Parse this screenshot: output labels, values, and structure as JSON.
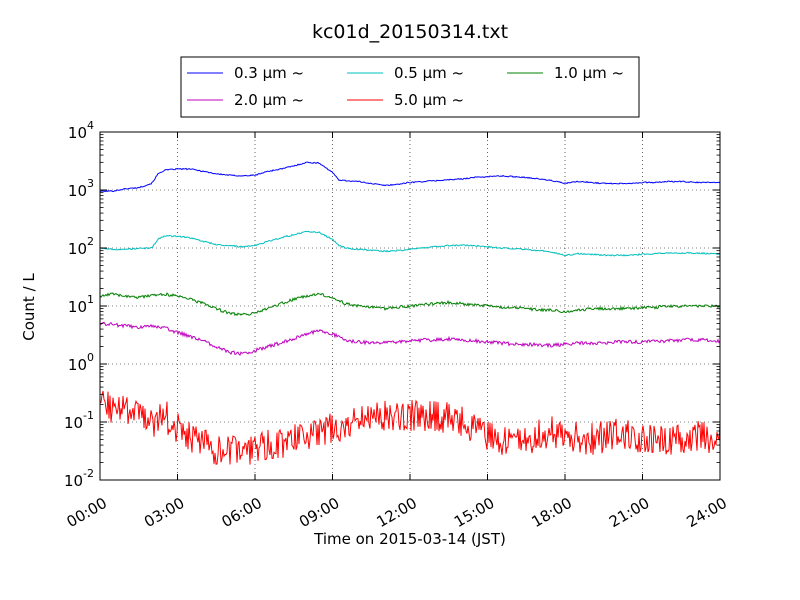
{
  "chart_data": {
    "type": "line",
    "title": "kc01d_20150314.txt",
    "xlabel": "Time on 2015-03-14 (JST)",
    "ylabel": "Count / L",
    "x_ticks": [
      "00:00",
      "03:00",
      "06:00",
      "09:00",
      "12:00",
      "15:00",
      "18:00",
      "21:00",
      "24:00"
    ],
    "y_ticks": [
      {
        "base": "10",
        "exp": "-2"
      },
      {
        "base": "10",
        "exp": "-1"
      },
      {
        "base": "10",
        "exp": "0"
      },
      {
        "base": "10",
        "exp": "1"
      },
      {
        "base": "10",
        "exp": "2"
      },
      {
        "base": "10",
        "exp": "3"
      },
      {
        "base": "10",
        "exp": "4"
      }
    ],
    "xlim": [
      "00:00",
      "24:00"
    ],
    "ylim": [
      0.01,
      10000
    ],
    "y_scale": "log",
    "grid": true,
    "legend_position": "above-plot",
    "series": [
      {
        "name": "0.3 μm ~",
        "color": "#0000ff",
        "x": [
          "00:00",
          "00:30",
          "01:00",
          "01:30",
          "02:00",
          "02:15",
          "02:30",
          "03:00",
          "03:30",
          "04:00",
          "04:30",
          "05:00",
          "05:30",
          "06:00",
          "06:30",
          "07:00",
          "07:30",
          "08:00",
          "08:30",
          "09:00",
          "09:15",
          "09:30",
          "10:00",
          "10:30",
          "11:00",
          "11:30",
          "12:00",
          "12:30",
          "13:00",
          "13:30",
          "14:00",
          "14:30",
          "15:00",
          "15:30",
          "16:00",
          "16:30",
          "17:00",
          "17:30",
          "18:00",
          "18:30",
          "19:00",
          "19:30",
          "20:00",
          "20:30",
          "21:00",
          "21:30",
          "22:00",
          "22:30",
          "23:00",
          "23:30",
          "24:00"
        ],
        "y": [
          950,
          960,
          1050,
          1100,
          1300,
          1900,
          2200,
          2300,
          2300,
          2100,
          1900,
          1800,
          1750,
          1800,
          2100,
          2300,
          2600,
          3000,
          2900,
          2000,
          1500,
          1450,
          1400,
          1300,
          1200,
          1250,
          1350,
          1400,
          1450,
          1500,
          1550,
          1650,
          1700,
          1750,
          1700,
          1650,
          1550,
          1450,
          1300,
          1400,
          1350,
          1300,
          1300,
          1300,
          1350,
          1350,
          1400,
          1400,
          1350,
          1350,
          1350
        ]
      },
      {
        "name": "0.5 μm ~",
        "color": "#00bfbf",
        "x": [
          "00:00",
          "00:30",
          "01:00",
          "01:30",
          "02:00",
          "02:15",
          "02:30",
          "03:00",
          "03:30",
          "04:00",
          "04:30",
          "05:00",
          "05:30",
          "06:00",
          "06:30",
          "07:00",
          "07:30",
          "08:00",
          "08:30",
          "09:00",
          "09:15",
          "09:30",
          "10:00",
          "10:30",
          "11:00",
          "11:30",
          "12:00",
          "12:30",
          "13:00",
          "13:30",
          "14:00",
          "14:30",
          "15:00",
          "15:30",
          "16:00",
          "16:30",
          "17:00",
          "17:30",
          "18:00",
          "18:30",
          "19:00",
          "19:30",
          "20:00",
          "20:30",
          "21:00",
          "21:30",
          "22:00",
          "22:30",
          "23:00",
          "23:30",
          "24:00"
        ],
        "y": [
          100,
          95,
          95,
          98,
          100,
          145,
          160,
          160,
          150,
          130,
          115,
          110,
          105,
          110,
          130,
          150,
          170,
          190,
          185,
          140,
          110,
          100,
          95,
          92,
          88,
          90,
          95,
          100,
          105,
          110,
          112,
          110,
          105,
          100,
          98,
          95,
          90,
          85,
          75,
          80,
          78,
          75,
          75,
          75,
          78,
          80,
          82,
          82,
          82,
          80,
          80
        ]
      },
      {
        "name": "1.0 μm ~",
        "color": "#008000",
        "x": [
          "00:00",
          "00:30",
          "01:00",
          "01:30",
          "02:00",
          "02:30",
          "03:00",
          "03:30",
          "04:00",
          "04:30",
          "05:00",
          "05:30",
          "06:00",
          "06:30",
          "07:00",
          "07:30",
          "08:00",
          "08:30",
          "09:00",
          "09:30",
          "10:00",
          "10:30",
          "11:00",
          "11:30",
          "12:00",
          "12:30",
          "13:00",
          "13:30",
          "14:00",
          "14:30",
          "15:00",
          "15:30",
          "16:00",
          "16:30",
          "17:00",
          "17:30",
          "18:00",
          "18:30",
          "19:00",
          "19:30",
          "20:00",
          "20:30",
          "21:00",
          "21:30",
          "22:00",
          "22:30",
          "23:00",
          "23:30",
          "24:00"
        ],
        "y": [
          15,
          16,
          15,
          14,
          15,
          16,
          15,
          13,
          11,
          9,
          7.5,
          7,
          7.5,
          9,
          11,
          13,
          15,
          16,
          14,
          11,
          10,
          9.5,
          9,
          9.5,
          10,
          10.5,
          11,
          11.5,
          11,
          10.5,
          10,
          9.5,
          9.5,
          9,
          8.5,
          8.5,
          8,
          8.5,
          9,
          9,
          9,
          9,
          9.5,
          9.5,
          10,
          10,
          10,
          10,
          10
        ]
      },
      {
        "name": "2.0 μm ~",
        "color": "#bf00bf",
        "x": [
          "00:00",
          "00:30",
          "01:00",
          "01:30",
          "02:00",
          "02:30",
          "03:00",
          "03:30",
          "04:00",
          "04:30",
          "05:00",
          "05:30",
          "06:00",
          "06:30",
          "07:00",
          "07:30",
          "08:00",
          "08:30",
          "09:00",
          "09:30",
          "10:00",
          "10:30",
          "11:00",
          "11:30",
          "12:00",
          "12:30",
          "13:00",
          "13:30",
          "14:00",
          "14:30",
          "15:00",
          "15:30",
          "16:00",
          "16:30",
          "17:00",
          "17:30",
          "18:00",
          "18:30",
          "19:00",
          "19:30",
          "20:00",
          "20:30",
          "21:00",
          "21:30",
          "22:00",
          "22:30",
          "23:00",
          "23:30",
          "24:00"
        ],
        "y": [
          5,
          4.8,
          4.5,
          4.3,
          4.5,
          4.2,
          3.5,
          3,
          2.5,
          2,
          1.6,
          1.5,
          1.7,
          2,
          2.3,
          2.7,
          3.3,
          3.8,
          3.3,
          2.6,
          2.4,
          2.3,
          2.3,
          2.4,
          2.5,
          2.6,
          2.6,
          2.7,
          2.6,
          2.5,
          2.4,
          2.3,
          2.2,
          2.2,
          2.1,
          2.1,
          2.2,
          2.3,
          2.3,
          2.3,
          2.4,
          2.4,
          2.4,
          2.5,
          2.5,
          2.6,
          2.6,
          2.6,
          2.5
        ]
      },
      {
        "name": "5.0 μm ~",
        "color": "#ff0000",
        "x": [
          "00:00",
          "00:30",
          "01:00",
          "01:30",
          "02:00",
          "02:30",
          "03:00",
          "03:30",
          "04:00",
          "04:30",
          "05:00",
          "05:30",
          "06:00",
          "06:30",
          "07:00",
          "07:30",
          "08:00",
          "08:30",
          "09:00",
          "09:30",
          "10:00",
          "10:30",
          "11:00",
          "11:30",
          "12:00",
          "12:30",
          "13:00",
          "13:30",
          "14:00",
          "14:30",
          "15:00",
          "15:30",
          "16:00",
          "16:30",
          "17:00",
          "17:30",
          "18:00",
          "18:30",
          "19:00",
          "19:30",
          "20:00",
          "20:30",
          "21:00",
          "21:30",
          "22:00",
          "22:30",
          "23:00",
          "23:30",
          "24:00"
        ],
        "y": [
          0.2,
          0.18,
          0.15,
          0.12,
          0.1,
          0.13,
          0.08,
          0.05,
          0.04,
          0.035,
          0.03,
          0.03,
          0.035,
          0.04,
          0.045,
          0.05,
          0.06,
          0.07,
          0.08,
          0.09,
          0.1,
          0.12,
          0.13,
          0.14,
          0.13,
          0.12,
          0.13,
          0.12,
          0.1,
          0.08,
          0.06,
          0.05,
          0.045,
          0.05,
          0.06,
          0.07,
          0.06,
          0.055,
          0.05,
          0.055,
          0.06,
          0.06,
          0.055,
          0.05,
          0.05,
          0.055,
          0.06,
          0.055,
          0.05
        ]
      }
    ]
  }
}
